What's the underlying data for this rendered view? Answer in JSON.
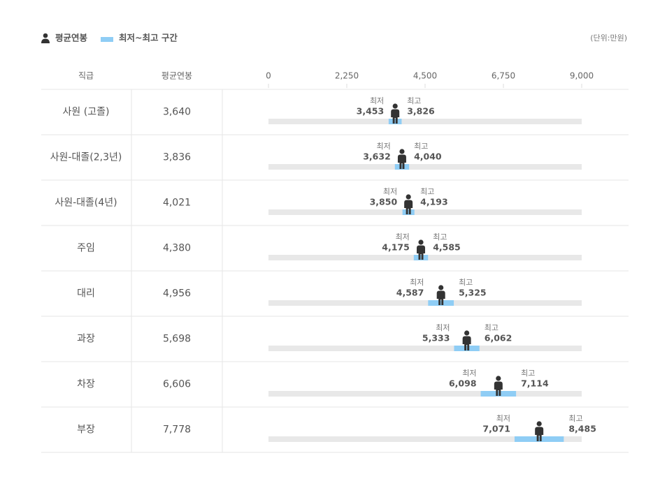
{
  "chart_data": {
    "type": "range",
    "legend": [
      "평균연봉",
      "최저~최고 구간"
    ],
    "unit": "(단위:만원)",
    "columns": [
      "직급",
      "평균연봉"
    ],
    "categories": [
      "사원 (고졸)",
      "사원-대졸(2,3년)",
      "사원-대졸(4년)",
      "주임",
      "대리",
      "과장",
      "차장",
      "부장"
    ],
    "series": [
      {
        "name": "평균연봉",
        "color": "#333333",
        "values": [
          3640,
          3836,
          4021,
          4380,
          4956,
          5698,
          6606,
          7778
        ],
        "value_labels": [
          "3,640",
          "3,836",
          "4,021",
          "4,380",
          "4,956",
          "5,698",
          "6,606",
          "7,778"
        ]
      },
      {
        "name": "최저",
        "color": "#8fcdf5",
        "values": [
          3453,
          3632,
          3850,
          4175,
          4587,
          5333,
          6098,
          7071
        ],
        "value_labels": [
          "3,453",
          "3,632",
          "3,850",
          "4,175",
          "4,587",
          "5,333",
          "6,098",
          "7,071"
        ]
      },
      {
        "name": "최고",
        "color": "#8fcdf5",
        "values": [
          3826,
          4040,
          4193,
          4585,
          5325,
          6062,
          7114,
          8485
        ],
        "value_labels": [
          "3,826",
          "4,040",
          "4,193",
          "4,585",
          "5,325",
          "6,062",
          "7,114",
          "8,485"
        ]
      }
    ],
    "track_color": "#e8e8e8",
    "xlim": [
      0,
      9000
    ],
    "xticks": [
      0,
      {
        "value": 2250,
        "label": "2,250"
      },
      {
        "value": 4500,
        "label": "4,500"
      },
      {
        "value": 6750,
        "label": "6,750"
      },
      {
        "value": 9000,
        "label": "9,000"
      }
    ]
  }
}
